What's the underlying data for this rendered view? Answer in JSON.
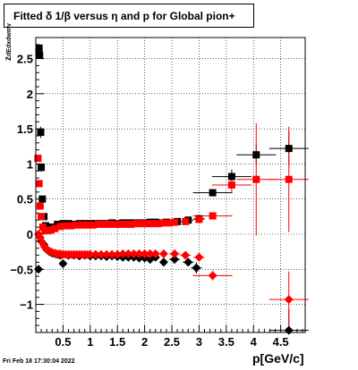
{
  "title": "Fitted δ 1/β versus η and p for Global pion+",
  "footer": "Fri Feb 18 17:30:04 2022",
  "chart_data": {
    "type": "scatter",
    "title": "Fitted δ 1/β versus η and p for Global pion+",
    "xlabel": "p[GeV/c]",
    "ylabel": "z",
    "ylabel_sub": "dEdxdwmv",
    "xlim": [
      0.0,
      4.95
    ],
    "ylim": [
      -1.4,
      2.8
    ],
    "x_ticks": [
      0.5,
      1,
      1.5,
      2,
      2.5,
      3,
      3.5,
      4,
      4.5
    ],
    "x_tick_labels": [
      "0.5",
      "1",
      "1.5",
      "2",
      "2.5",
      "3",
      "3.5",
      "4",
      "4.5"
    ],
    "y_ticks": [
      -1,
      -0.5,
      0,
      0.5,
      1,
      1.5,
      2,
      2.5
    ],
    "y_tick_labels": [
      "−1",
      "−0.5",
      "0",
      "0.5",
      "1",
      "1.5",
      "2",
      "2.5"
    ],
    "grid": true,
    "series": [
      {
        "color": "#000000",
        "marker": "square",
        "points": [
          [
            0.06,
            2.65,
            0.02
          ],
          [
            0.07,
            2.55,
            0.02
          ],
          [
            0.09,
            1.45,
            0.08
          ],
          [
            0.1,
            0.95,
            0.06
          ],
          [
            0.12,
            0.5,
            0.04
          ],
          [
            0.15,
            0.25,
            0.03
          ],
          [
            0.18,
            0.12,
            0.02
          ],
          [
            0.22,
            0.08,
            0.02
          ],
          [
            0.3,
            0.1,
            0.01
          ],
          [
            0.4,
            0.14,
            0.01
          ],
          [
            0.5,
            0.15,
            0.01
          ],
          [
            0.6,
            0.15,
            0.01
          ],
          [
            0.7,
            0.14,
            0.01
          ],
          [
            0.8,
            0.15,
            0.01
          ],
          [
            0.9,
            0.15,
            0.01
          ],
          [
            1.0,
            0.15,
            0.01
          ],
          [
            1.1,
            0.15,
            0.01
          ],
          [
            1.2,
            0.15,
            0.01
          ],
          [
            1.3,
            0.15,
            0.01
          ],
          [
            1.4,
            0.16,
            0.01
          ],
          [
            1.5,
            0.15,
            0.01
          ],
          [
            1.6,
            0.16,
            0.01
          ],
          [
            1.7,
            0.16,
            0.01
          ],
          [
            1.8,
            0.16,
            0.01
          ],
          [
            1.9,
            0.16,
            0.01
          ],
          [
            2.0,
            0.16,
            0.01
          ],
          [
            2.1,
            0.17,
            0.015
          ],
          [
            2.2,
            0.17,
            0.015
          ],
          [
            2.3,
            0.16,
            0.02
          ],
          [
            2.4,
            0.17,
            0.02
          ],
          [
            2.6,
            0.18,
            0.03
          ],
          [
            2.8,
            0.2,
            0.04
          ],
          [
            3.0,
            0.22,
            0.05
          ],
          [
            3.25,
            0.59,
            0.05
          ],
          [
            3.6,
            0.82,
            0.1
          ],
          [
            4.05,
            1.13,
            0.15
          ],
          [
            4.65,
            1.22,
            0.25
          ]
        ]
      },
      {
        "color": "#000000",
        "marker": "diamond",
        "points": [
          [
            0.05,
            -0.5,
            0.05
          ],
          [
            0.1,
            -0.1,
            0.04
          ],
          [
            0.15,
            -0.15,
            0.03
          ],
          [
            0.2,
            -0.22,
            0.02
          ],
          [
            0.25,
            -0.25,
            0.02
          ],
          [
            0.3,
            -0.27,
            0.02
          ],
          [
            0.35,
            -0.28,
            0.02
          ],
          [
            0.4,
            -0.29,
            0.02
          ],
          [
            0.45,
            -0.3,
            0.02
          ],
          [
            0.5,
            -0.42,
            0.03
          ],
          [
            0.6,
            -0.3,
            0.02
          ],
          [
            0.7,
            -0.3,
            0.02
          ],
          [
            0.8,
            -0.31,
            0.02
          ],
          [
            0.9,
            -0.3,
            0.02
          ],
          [
            1.0,
            -0.31,
            0.02
          ],
          [
            1.1,
            -0.31,
            0.02
          ],
          [
            1.2,
            -0.31,
            0.02
          ],
          [
            1.3,
            -0.32,
            0.02
          ],
          [
            1.4,
            -0.31,
            0.02
          ],
          [
            1.5,
            -0.32,
            0.02
          ],
          [
            1.6,
            -0.33,
            0.02
          ],
          [
            1.7,
            -0.33,
            0.02
          ],
          [
            1.8,
            -0.33,
            0.03
          ],
          [
            1.9,
            -0.34,
            0.03
          ],
          [
            2.0,
            -0.34,
            0.03
          ],
          [
            2.1,
            -0.36,
            0.03
          ],
          [
            2.2,
            -0.33,
            0.03
          ],
          [
            2.35,
            -0.4,
            0.04
          ],
          [
            2.55,
            -0.36,
            0.05
          ],
          [
            2.8,
            -0.4,
            0.05
          ],
          [
            2.95,
            -0.48,
            0.08
          ],
          [
            4.65,
            -1.37,
            0.3
          ]
        ]
      },
      {
        "color": "#ff0000",
        "marker": "square",
        "points": [
          [
            0.04,
            1.08,
            0.05
          ],
          [
            0.06,
            0.72,
            0.04
          ],
          [
            0.08,
            0.4,
            0.03
          ],
          [
            0.1,
            0.25,
            0.03
          ],
          [
            0.13,
            0.1,
            0.02
          ],
          [
            0.17,
            0.05,
            0.02
          ],
          [
            0.22,
            0.05,
            0.01
          ],
          [
            0.28,
            0.06,
            0.01
          ],
          [
            0.35,
            0.08,
            0.01
          ],
          [
            0.45,
            0.11,
            0.01
          ],
          [
            0.55,
            0.12,
            0.01
          ],
          [
            0.65,
            0.12,
            0.01
          ],
          [
            0.75,
            0.13,
            0.01
          ],
          [
            0.85,
            0.13,
            0.01
          ],
          [
            0.95,
            0.13,
            0.01
          ],
          [
            1.05,
            0.13,
            0.01
          ],
          [
            1.15,
            0.14,
            0.01
          ],
          [
            1.25,
            0.14,
            0.01
          ],
          [
            1.35,
            0.14,
            0.01
          ],
          [
            1.45,
            0.14,
            0.01
          ],
          [
            1.55,
            0.14,
            0.01
          ],
          [
            1.65,
            0.14,
            0.01
          ],
          [
            1.75,
            0.14,
            0.01
          ],
          [
            1.85,
            0.15,
            0.01
          ],
          [
            1.95,
            0.15,
            0.01
          ],
          [
            2.05,
            0.15,
            0.01
          ],
          [
            2.15,
            0.15,
            0.01
          ],
          [
            2.25,
            0.15,
            0.01
          ],
          [
            2.35,
            0.16,
            0.02
          ],
          [
            2.45,
            0.16,
            0.02
          ],
          [
            2.55,
            0.17,
            0.02
          ],
          [
            2.75,
            0.18,
            0.03
          ],
          [
            3.0,
            0.21,
            0.04
          ],
          [
            3.25,
            0.26,
            0.05
          ],
          [
            3.6,
            0.7,
            0.1
          ],
          [
            4.05,
            0.78,
            0.8
          ],
          [
            4.65,
            0.78,
            0.75
          ]
        ]
      },
      {
        "color": "#ff0000",
        "marker": "diamond",
        "points": [
          [
            0.05,
            0.0,
            0.04
          ],
          [
            0.08,
            -0.05,
            0.03
          ],
          [
            0.12,
            -0.12,
            0.03
          ],
          [
            0.16,
            -0.18,
            0.02
          ],
          [
            0.2,
            -0.22,
            0.02
          ],
          [
            0.25,
            -0.24,
            0.02
          ],
          [
            0.3,
            -0.26,
            0.02
          ],
          [
            0.35,
            -0.27,
            0.02
          ],
          [
            0.4,
            -0.28,
            0.02
          ],
          [
            0.45,
            -0.28,
            0.02
          ],
          [
            0.5,
            -0.29,
            0.02
          ],
          [
            0.55,
            -0.29,
            0.02
          ],
          [
            0.6,
            -0.29,
            0.02
          ],
          [
            0.65,
            -0.29,
            0.02
          ],
          [
            0.7,
            -0.29,
            0.02
          ],
          [
            0.75,
            -0.29,
            0.02
          ],
          [
            0.8,
            -0.29,
            0.02
          ],
          [
            0.85,
            -0.29,
            0.02
          ],
          [
            0.9,
            -0.29,
            0.02
          ],
          [
            0.95,
            -0.29,
            0.02
          ],
          [
            1.0,
            -0.29,
            0.02
          ],
          [
            1.1,
            -0.29,
            0.02
          ],
          [
            1.2,
            -0.29,
            0.02
          ],
          [
            1.3,
            -0.29,
            0.02
          ],
          [
            1.4,
            -0.29,
            0.02
          ],
          [
            1.5,
            -0.29,
            0.02
          ],
          [
            1.6,
            -0.28,
            0.02
          ],
          [
            1.7,
            -0.28,
            0.02
          ],
          [
            1.8,
            -0.28,
            0.02
          ],
          [
            1.9,
            -0.28,
            0.02
          ],
          [
            2.0,
            -0.28,
            0.02
          ],
          [
            2.1,
            -0.28,
            0.02
          ],
          [
            2.2,
            -0.28,
            0.02
          ],
          [
            2.35,
            -0.28,
            0.03
          ],
          [
            2.55,
            -0.28,
            0.03
          ],
          [
            2.75,
            -0.3,
            0.04
          ],
          [
            3.0,
            -0.33,
            0.05
          ],
          [
            3.25,
            -0.59,
            0.07
          ],
          [
            4.65,
            -0.93,
            0.4
          ]
        ]
      }
    ]
  }
}
